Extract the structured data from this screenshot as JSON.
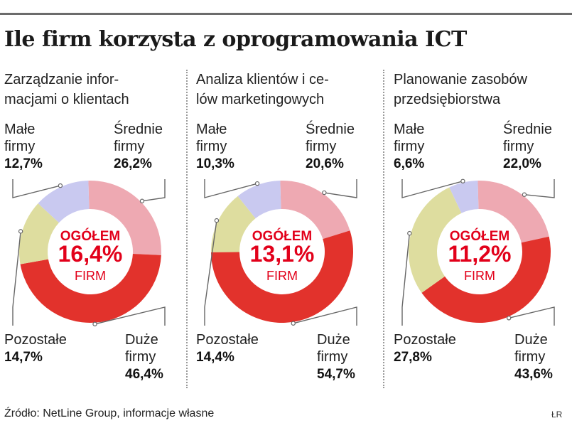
{
  "title": "Ile firm korzysta z oprogramowania ICT",
  "source": "Źródło: NetLine Group, informacje własne",
  "credit": "ŁR",
  "colors": {
    "male": "#c9c9f0",
    "srednie": "#eea9b2",
    "duze": "#e2322c",
    "pozostale": "#dedd9f",
    "center_text": "#e2001a",
    "leader": "#666666"
  },
  "chart_data": [
    {
      "type": "pie",
      "title": "Zarządzanie infor-\nmacjami o klientach",
      "center": [
        "OGÓŁEM",
        "16,4%",
        "FIRM"
      ],
      "slices": [
        {
          "key": "male",
          "label": "Małe\nfirmy",
          "value": 12.7,
          "value_label": "12,7%"
        },
        {
          "key": "srednie",
          "label": "Średnie\nfirmy",
          "value": 26.2,
          "value_label": "26,2%"
        },
        {
          "key": "duze",
          "label": "Duże\nfirmy",
          "value": 46.4,
          "value_label": "46,4%"
        },
        {
          "key": "pozostale",
          "label": "Pozostałe",
          "value": 14.7,
          "value_label": "14,7%"
        }
      ]
    },
    {
      "type": "pie",
      "title": "Analiza klientów i ce-\nlów marketingowych",
      "center": [
        "OGÓŁEM",
        "13,1%",
        "FIRM"
      ],
      "slices": [
        {
          "key": "male",
          "label": "Małe\nfirmy",
          "value": 10.3,
          "value_label": "10,3%"
        },
        {
          "key": "srednie",
          "label": "Średnie\nfirmy",
          "value": 20.6,
          "value_label": "20,6%"
        },
        {
          "key": "duze",
          "label": "Duże\nfirmy",
          "value": 54.7,
          "value_label": "54,7%"
        },
        {
          "key": "pozostale",
          "label": "Pozostałe",
          "value": 14.4,
          "value_label": "14,4%"
        }
      ]
    },
    {
      "type": "pie",
      "title": "Planowanie zasobów\nprzedsiębiorstwa",
      "center": [
        "OGÓŁEM",
        "11,2%",
        "FIRM"
      ],
      "slices": [
        {
          "key": "male",
          "label": "Małe\nfirmy",
          "value": 6.6,
          "value_label": "6,6%"
        },
        {
          "key": "srednie",
          "label": "Średnie\nfirmy",
          "value": 22.0,
          "value_label": "22,0%"
        },
        {
          "key": "duze",
          "label": "Duże\nfirmy",
          "value": 43.6,
          "value_label": "43,6%"
        },
        {
          "key": "pozostale",
          "label": "Pozostałe",
          "value": 27.8,
          "value_label": "27,8%"
        }
      ]
    }
  ]
}
